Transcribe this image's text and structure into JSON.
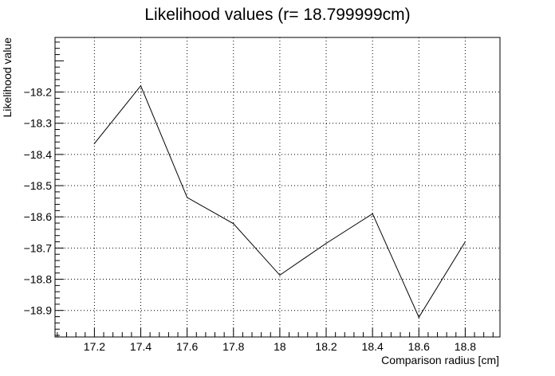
{
  "chart_data": {
    "type": "line",
    "title": "Likelihood values (r= 18.799999cm)",
    "xlabel": "Comparison radius [cm]",
    "ylabel": "Likelihood value",
    "x": [
      17.2,
      17.4,
      17.6,
      17.8,
      18.0,
      18.2,
      18.4,
      18.6,
      18.8
    ],
    "series": [
      {
        "values": [
          -18.365,
          -18.18,
          -18.538,
          -18.622,
          -18.787,
          -18.685,
          -18.59,
          -18.922,
          -18.68
        ]
      }
    ],
    "xlim": [
      17.03,
      18.95
    ],
    "ylim": [
      -18.985,
      -18.025
    ],
    "xticks": [
      17.2,
      17.4,
      17.6,
      17.8,
      18.0,
      18.2,
      18.4,
      18.6,
      18.8
    ],
    "xtick_labels": [
      "17.2",
      "17.4",
      "17.6",
      "17.8",
      "18",
      "18.2",
      "18.4",
      "18.6",
      "18.8"
    ],
    "yticks": [
      -18.2,
      -18.3,
      -18.4,
      -18.5,
      -18.6,
      -18.7,
      -18.8,
      -18.9
    ],
    "ytick_labels": [
      "−18.2",
      "−18.3",
      "−18.4",
      "−18.5",
      "−18.6",
      "−18.7",
      "−18.8",
      "−18.9"
    ],
    "grid": true,
    "line_color": "#000000"
  }
}
